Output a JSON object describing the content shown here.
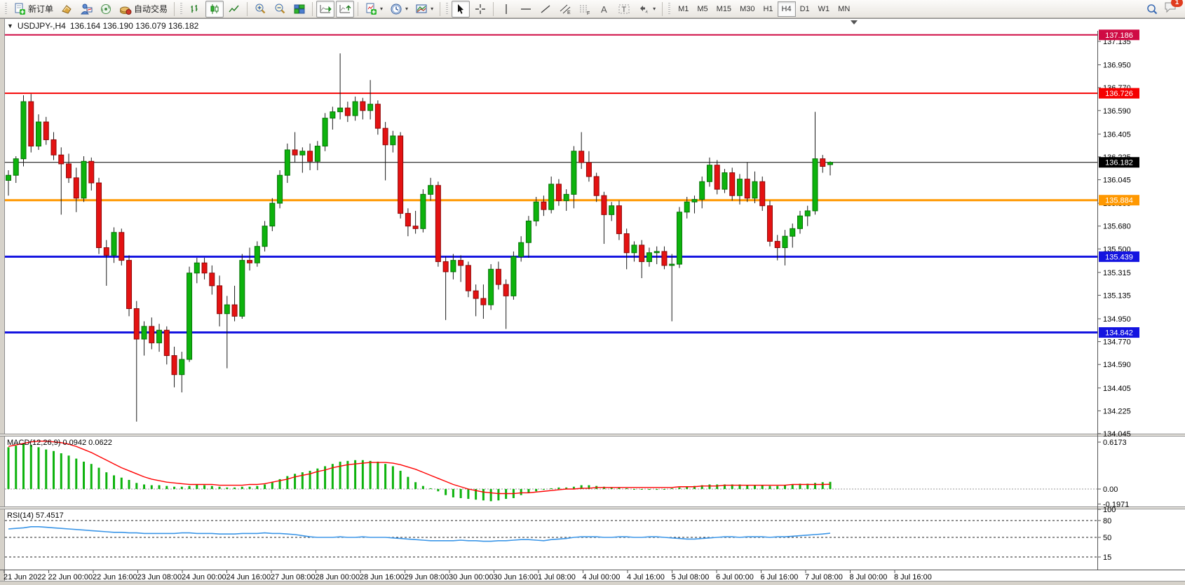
{
  "toolbar": {
    "new_order_label": "新订单",
    "autotrading_label": "自动交易",
    "timeframes": [
      "M1",
      "M5",
      "M15",
      "M30",
      "H1",
      "H4",
      "D1",
      "W1",
      "MN"
    ],
    "active_timeframe": "H4",
    "notification_count": "1",
    "icons": [
      "new-order-icon",
      "market-watch-icon",
      "navigator-icon",
      "signals-icon",
      "autotrading-icon",
      "bar-chart-icon",
      "candlestick-icon",
      "line-chart-icon",
      "zoom-in-icon",
      "zoom-out-icon",
      "tile-windows-icon",
      "auto-scroll-icon",
      "chart-shift-icon",
      "indicators-icon",
      "periods-icon",
      "templates-icon",
      "cursor-icon",
      "crosshair-icon",
      "vertical-line-icon",
      "horizontal-line-icon",
      "trendline-icon",
      "channel-icon",
      "fibonacci-icon",
      "text-icon",
      "text-label-icon",
      "arrows-icon",
      "search-icon",
      "chat-icon"
    ]
  },
  "window": {
    "symbol_title": "USDJPY-,H4",
    "ohlc_line": "136.164 136.190 136.079 136.182"
  },
  "chart_data": {
    "type": "candlestick",
    "symbol": "USDJPY-",
    "timeframe": "H4",
    "colors": {
      "bull": "#0db30d",
      "bull_stroke": "#067306",
      "bear": "#e41212",
      "bear_stroke": "#8f0808",
      "wick": "#1a1a1a",
      "macd_hist": "#0db30d",
      "macd_signal": "#ff0000",
      "rsi_line": "#3b96e8",
      "axis": "#555555"
    },
    "price_axis_ticks": [
      "137.135",
      "136.950",
      "136.770",
      "136.590",
      "136.405",
      "136.225",
      "136.045",
      "135.860",
      "135.680",
      "135.500",
      "135.315",
      "135.135",
      "134.950",
      "134.770",
      "134.590",
      "134.405",
      "134.225",
      "134.045"
    ],
    "time_axis_ticks": [
      "21 Jun 2022",
      "22 Jun 00:00",
      "22 Jun 16:00",
      "23 Jun 08:00",
      "24 Jun 00:00",
      "24 Jun 16:00",
      "27 Jun 08:00",
      "28 Jun 00:00",
      "28 Jun 16:00",
      "29 Jun 08:00",
      "30 Jun 00:00",
      "30 Jun 16:00",
      "1 Jul 08:00",
      "4 Jul 00:00",
      "4 Jul 16:00",
      "5 Jul 08:00",
      "6 Jul 00:00",
      "6 Jul 16:00",
      "7 Jul 08:00",
      "8 Jul 00:00",
      "8 Jul 16:00"
    ],
    "hlines": [
      {
        "price": 137.186,
        "label": "137.186",
        "color": "#cf0b44",
        "width": 2
      },
      {
        "price": 136.726,
        "label": "136.726",
        "color": "#f50000",
        "width": 2
      },
      {
        "price": 136.182,
        "label": "136.182",
        "color": "#000000",
        "width": 1
      },
      {
        "price": 135.884,
        "label": "135.884",
        "color": "#ff9800",
        "width": 3
      },
      {
        "price": 135.439,
        "label": "135.439",
        "color": "#1414e0",
        "width": 3
      },
      {
        "price": 134.842,
        "label": "134.842",
        "color": "#1414e0",
        "width": 3
      }
    ],
    "current_price": "136.182",
    "candles_ohlc": [
      [
        136.04,
        136.12,
        135.92,
        136.08
      ],
      [
        136.08,
        136.23,
        136.02,
        136.21
      ],
      [
        136.21,
        136.71,
        136.15,
        136.66
      ],
      [
        136.66,
        136.72,
        136.26,
        136.31
      ],
      [
        136.31,
        136.56,
        136.28,
        136.5
      ],
      [
        136.5,
        136.54,
        136.32,
        136.36
      ],
      [
        136.36,
        136.42,
        136.2,
        136.24
      ],
      [
        136.24,
        136.3,
        135.77,
        136.17
      ],
      [
        136.17,
        136.25,
        136.02,
        136.06
      ],
      [
        136.06,
        136.14,
        135.79,
        135.9
      ],
      [
        135.9,
        136.23,
        135.87,
        136.19
      ],
      [
        136.19,
        136.22,
        135.96,
        136.02
      ],
      [
        136.02,
        136.06,
        135.46,
        135.51
      ],
      [
        135.51,
        135.57,
        135.21,
        135.45
      ],
      [
        135.45,
        135.67,
        135.39,
        135.63
      ],
      [
        135.63,
        135.66,
        135.37,
        135.41
      ],
      [
        135.41,
        135.45,
        134.97,
        135.03
      ],
      [
        135.03,
        135.09,
        134.14,
        134.79
      ],
      [
        134.79,
        134.93,
        134.66,
        134.89
      ],
      [
        134.89,
        134.96,
        134.71,
        134.76
      ],
      [
        134.76,
        134.91,
        134.69,
        134.86
      ],
      [
        134.86,
        134.89,
        134.59,
        134.66
      ],
      [
        134.66,
        134.73,
        134.41,
        134.51
      ],
      [
        134.51,
        134.69,
        134.37,
        134.63
      ],
      [
        134.63,
        135.36,
        134.61,
        135.31
      ],
      [
        135.31,
        135.43,
        135.23,
        135.39
      ],
      [
        135.39,
        135.43,
        135.26,
        135.31
      ],
      [
        135.31,
        135.37,
        135.14,
        135.21
      ],
      [
        135.21,
        135.29,
        134.89,
        134.99
      ],
      [
        134.99,
        135.13,
        134.56,
        135.06
      ],
      [
        135.06,
        135.21,
        134.93,
        134.97
      ],
      [
        134.97,
        135.46,
        134.95,
        135.41
      ],
      [
        135.41,
        135.51,
        135.33,
        135.39
      ],
      [
        135.39,
        135.56,
        135.36,
        135.52
      ],
      [
        135.52,
        135.72,
        135.48,
        135.68
      ],
      [
        135.68,
        135.9,
        135.64,
        135.86
      ],
      [
        135.86,
        136.12,
        135.82,
        136.08
      ],
      [
        136.08,
        136.33,
        136.02,
        136.28
      ],
      [
        136.28,
        136.42,
        136.18,
        136.24
      ],
      [
        136.24,
        136.3,
        136.1,
        136.27
      ],
      [
        136.27,
        136.33,
        136.12,
        136.19
      ],
      [
        136.19,
        136.35,
        136.12,
        136.31
      ],
      [
        136.31,
        136.57,
        136.27,
        136.53
      ],
      [
        136.53,
        136.62,
        136.44,
        136.58
      ],
      [
        136.58,
        137.04,
        136.52,
        136.61
      ],
      [
        136.61,
        136.66,
        136.5,
        136.55
      ],
      [
        136.55,
        136.7,
        136.51,
        136.66
      ],
      [
        136.66,
        136.69,
        136.52,
        136.59
      ],
      [
        136.59,
        136.83,
        136.52,
        136.64
      ],
      [
        136.64,
        136.67,
        136.4,
        136.45
      ],
      [
        136.45,
        136.5,
        136.04,
        136.32
      ],
      [
        136.32,
        136.43,
        136.26,
        136.39
      ],
      [
        136.39,
        136.42,
        135.74,
        135.78
      ],
      [
        135.78,
        135.82,
        135.6,
        135.68
      ],
      [
        135.68,
        135.8,
        135.62,
        135.66
      ],
      [
        135.66,
        135.97,
        135.63,
        135.93
      ],
      [
        135.93,
        136.06,
        135.88,
        136.0
      ],
      [
        136.0,
        136.03,
        135.36,
        135.4
      ],
      [
        135.4,
        135.44,
        134.94,
        135.32
      ],
      [
        135.32,
        135.46,
        135.26,
        135.41
      ],
      [
        135.41,
        135.45,
        135.24,
        135.37
      ],
      [
        135.37,
        135.4,
        135.12,
        135.17
      ],
      [
        135.17,
        135.22,
        134.97,
        135.11
      ],
      [
        135.11,
        135.22,
        134.95,
        135.06
      ],
      [
        135.06,
        135.38,
        135.02,
        135.34
      ],
      [
        135.34,
        135.4,
        135.18,
        135.22
      ],
      [
        135.22,
        135.26,
        134.87,
        135.13
      ],
      [
        135.13,
        135.48,
        135.1,
        135.44
      ],
      [
        135.44,
        135.6,
        135.4,
        135.55
      ],
      [
        135.55,
        135.76,
        135.43,
        135.72
      ],
      [
        135.72,
        135.91,
        135.68,
        135.87
      ],
      [
        135.87,
        135.92,
        135.76,
        135.81
      ],
      [
        135.81,
        136.07,
        135.78,
        136.01
      ],
      [
        136.01,
        136.05,
        135.84,
        135.88
      ],
      [
        135.88,
        135.97,
        135.8,
        135.93
      ],
      [
        135.93,
        136.31,
        135.82,
        136.27
      ],
      [
        136.27,
        136.42,
        136.13,
        136.18
      ],
      [
        136.18,
        136.27,
        136.03,
        136.07
      ],
      [
        136.07,
        136.1,
        135.87,
        135.92
      ],
      [
        135.92,
        135.95,
        135.54,
        135.77
      ],
      [
        135.77,
        135.87,
        135.72,
        135.84
      ],
      [
        135.84,
        135.88,
        135.57,
        135.62
      ],
      [
        135.62,
        135.66,
        135.34,
        135.47
      ],
      [
        135.47,
        135.56,
        135.4,
        135.53
      ],
      [
        135.53,
        135.57,
        135.27,
        135.4
      ],
      [
        135.4,
        135.51,
        135.36,
        135.47
      ],
      [
        135.47,
        135.52,
        135.38,
        135.48
      ],
      [
        135.48,
        135.52,
        135.34,
        135.37
      ],
      [
        135.37,
        135.46,
        134.93,
        135.38
      ],
      [
        135.38,
        135.83,
        135.35,
        135.79
      ],
      [
        135.79,
        135.91,
        135.74,
        135.87
      ],
      [
        135.87,
        135.92,
        135.78,
        135.89
      ],
      [
        135.89,
        136.07,
        135.82,
        136.03
      ],
      [
        136.03,
        136.22,
        135.99,
        136.16
      ],
      [
        136.16,
        136.2,
        135.93,
        135.97
      ],
      [
        135.97,
        136.13,
        135.94,
        136.1
      ],
      [
        136.1,
        136.14,
        135.88,
        135.92
      ],
      [
        135.92,
        136.09,
        135.85,
        136.05
      ],
      [
        136.05,
        136.18,
        135.87,
        135.9
      ],
      [
        135.9,
        136.11,
        135.86,
        136.03
      ],
      [
        136.03,
        136.07,
        135.8,
        135.84
      ],
      [
        135.84,
        135.88,
        135.52,
        135.56
      ],
      [
        135.56,
        135.61,
        135.41,
        135.51
      ],
      [
        135.51,
        135.65,
        135.37,
        135.6
      ],
      [
        135.6,
        135.7,
        135.51,
        135.66
      ],
      [
        135.66,
        135.8,
        135.62,
        135.76
      ],
      [
        135.76,
        135.84,
        135.68,
        135.8
      ],
      [
        135.8,
        136.58,
        135.77,
        136.21
      ],
      [
        136.21,
        136.24,
        136.1,
        136.15
      ],
      [
        136.164,
        136.19,
        136.079,
        136.182
      ]
    ],
    "macd": {
      "label": "MACD(12,26,9)",
      "values": "0.0942 0.0622",
      "axis_ticks": [
        "0.6173",
        "0.00",
        "-0.1971"
      ],
      "hist": [
        0.55,
        0.57,
        0.6,
        0.58,
        0.55,
        0.52,
        0.5,
        0.47,
        0.44,
        0.4,
        0.36,
        0.33,
        0.28,
        0.22,
        0.18,
        0.15,
        0.12,
        0.08,
        0.06,
        0.05,
        0.05,
        0.04,
        0.03,
        0.03,
        0.04,
        0.06,
        0.05,
        0.04,
        0.03,
        0.02,
        0.02,
        0.03,
        0.03,
        0.04,
        0.06,
        0.09,
        0.13,
        0.17,
        0.2,
        0.22,
        0.24,
        0.27,
        0.3,
        0.33,
        0.36,
        0.37,
        0.38,
        0.38,
        0.37,
        0.36,
        0.33,
        0.3,
        0.24,
        0.16,
        0.09,
        0.04,
        0.01,
        -0.03,
        -0.08,
        -0.11,
        -0.12,
        -0.13,
        -0.14,
        -0.15,
        -0.16,
        -0.15,
        -0.13,
        -0.12,
        -0.08,
        -0.05,
        -0.03,
        -0.01,
        0.01,
        0.02,
        0.02,
        0.03,
        0.05,
        0.05,
        0.04,
        0.03,
        0.02,
        0.02,
        0.01,
        0.0,
        0.0,
        -0.01,
        -0.01,
        0.0,
        0.01,
        0.02,
        0.03,
        0.04,
        0.05,
        0.06,
        0.06,
        0.06,
        0.06,
        0.06,
        0.05,
        0.05,
        0.05,
        0.04,
        0.04,
        0.05,
        0.06,
        0.07,
        0.07,
        0.08,
        0.09,
        0.0942
      ],
      "signal": [
        0.56,
        0.58,
        0.6,
        0.62,
        0.63,
        0.63,
        0.62,
        0.61,
        0.59,
        0.56,
        0.52,
        0.48,
        0.43,
        0.38,
        0.33,
        0.28,
        0.24,
        0.2,
        0.16,
        0.13,
        0.11,
        0.09,
        0.08,
        0.07,
        0.06,
        0.06,
        0.06,
        0.06,
        0.05,
        0.05,
        0.05,
        0.05,
        0.06,
        0.06,
        0.07,
        0.09,
        0.11,
        0.13,
        0.16,
        0.18,
        0.2,
        0.23,
        0.25,
        0.28,
        0.3,
        0.32,
        0.33,
        0.34,
        0.35,
        0.35,
        0.35,
        0.34,
        0.32,
        0.29,
        0.26,
        0.22,
        0.18,
        0.14,
        0.1,
        0.06,
        0.03,
        0.0,
        -0.02,
        -0.04,
        -0.05,
        -0.06,
        -0.06,
        -0.06,
        -0.05,
        -0.05,
        -0.04,
        -0.03,
        -0.02,
        -0.01,
        0.0,
        0.0,
        0.01,
        0.01,
        0.02,
        0.02,
        0.02,
        0.02,
        0.02,
        0.02,
        0.02,
        0.02,
        0.02,
        0.02,
        0.02,
        0.03,
        0.03,
        0.03,
        0.04,
        0.04,
        0.04,
        0.05,
        0.05,
        0.05,
        0.05,
        0.05,
        0.05,
        0.05,
        0.05,
        0.05,
        0.06,
        0.06,
        0.06,
        0.06,
        0.06,
        0.0622
      ]
    },
    "rsi": {
      "label": "RSI(14) 57.4517",
      "axis_ticks": [
        "100",
        "80",
        "50",
        "15"
      ],
      "levels": [
        80,
        50,
        15
      ],
      "series": [
        65,
        66,
        67,
        69,
        69,
        68,
        67,
        66,
        65,
        64,
        63,
        62,
        61,
        60,
        59,
        59,
        58,
        58,
        57,
        57,
        57,
        57,
        57,
        58,
        58,
        57,
        57,
        57,
        56,
        56,
        56,
        57,
        57,
        57,
        58,
        57,
        57,
        56,
        55,
        53,
        51,
        50,
        50,
        50,
        51,
        50,
        50,
        51,
        50,
        50,
        50,
        49,
        48,
        47,
        46,
        45,
        44,
        44,
        44,
        44,
        45,
        44,
        44,
        43,
        43,
        44,
        44,
        45,
        46,
        46,
        45,
        44,
        46,
        47,
        48,
        50,
        51,
        51,
        51,
        50,
        50,
        51,
        51,
        50,
        50,
        51,
        51,
        50,
        49,
        48,
        47,
        47,
        48,
        49,
        50,
        51,
        51,
        50,
        51,
        51,
        51,
        50,
        51,
        51,
        52,
        53,
        54,
        55,
        56,
        57.45
      ]
    }
  }
}
